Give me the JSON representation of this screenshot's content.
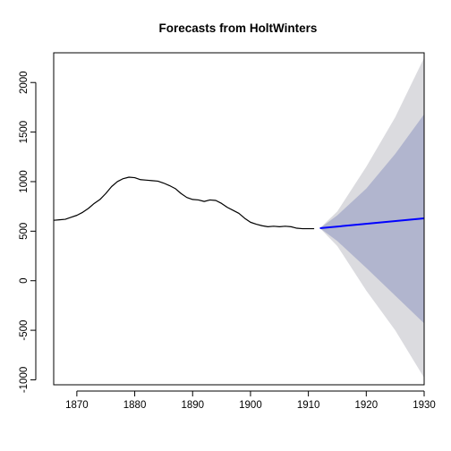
{
  "chart_data": {
    "type": "line",
    "title": "Forecasts from HoltWinters",
    "xlabel": "",
    "ylabel": "",
    "xlim": [
      1866,
      1930
    ],
    "ylim": [
      -1050,
      2300
    ],
    "grid": false,
    "x_ticks": [
      1870,
      1880,
      1890,
      1900,
      1910,
      1920,
      1930
    ],
    "y_ticks": [
      -1000,
      -500,
      0,
      500,
      1000,
      1500,
      2000
    ],
    "observed": {
      "x": [
        1866,
        1867,
        1868,
        1869,
        1870,
        1871,
        1872,
        1873,
        1874,
        1875,
        1876,
        1877,
        1878,
        1879,
        1880,
        1881,
        1882,
        1883,
        1884,
        1885,
        1886,
        1887,
        1888,
        1889,
        1890,
        1891,
        1892,
        1893,
        1894,
        1895,
        1896,
        1897,
        1898,
        1899,
        1900,
        1901,
        1902,
        1903,
        1904,
        1905,
        1906,
        1907,
        1908,
        1909,
        1910,
        1911
      ],
      "y": [
        610,
        615,
        620,
        640,
        660,
        690,
        730,
        780,
        820,
        880,
        950,
        1000,
        1030,
        1045,
        1040,
        1020,
        1015,
        1010,
        1005,
        985,
        960,
        930,
        880,
        840,
        820,
        815,
        800,
        815,
        810,
        780,
        740,
        710,
        680,
        630,
        590,
        570,
        555,
        545,
        550,
        545,
        550,
        545,
        530,
        525,
        525,
        525
      ]
    },
    "forecast": {
      "x": [
        1912,
        1930
      ],
      "y": [
        530,
        630
      ],
      "color": "#0000ff"
    },
    "intervals": [
      {
        "level": 80,
        "color": "#b1b5ce",
        "x": [
          1912,
          1915,
          1920,
          1925,
          1930
        ],
        "lower": [
          530,
          400,
          130,
          -150,
          -430
        ],
        "upper": [
          530,
          660,
          930,
          1280,
          1680
        ]
      },
      {
        "level": 95,
        "color": "#dbdbdf",
        "x": [
          1912,
          1915,
          1920,
          1925,
          1930
        ],
        "lower": [
          530,
          350,
          -100,
          -500,
          -980
        ],
        "upper": [
          530,
          700,
          1150,
          1650,
          2250
        ]
      }
    ]
  }
}
